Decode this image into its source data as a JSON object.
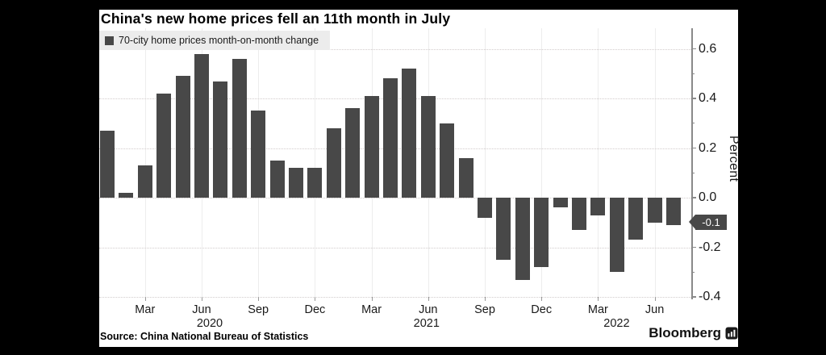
{
  "colors": {
    "background": "#000000",
    "panel": "#ffffff",
    "bar": "#484848",
    "badge_bg": "#484848",
    "badge_text": "#ffffff",
    "legend_bg": "#ececec",
    "axis": "#8a8a8a",
    "text": "#1a1a1a"
  },
  "header": {
    "title": "China's new home prices fell an 11th month in July"
  },
  "legend": {
    "label": "70-city home prices month-on-month change"
  },
  "annotation": {
    "last_value_label": "-0.1"
  },
  "footer": {
    "source": "Source: China National Bureau of Statistics",
    "brand": "Bloomberg"
  },
  "chart_data": {
    "type": "bar",
    "title": "China's new home prices fell an 11th month in July",
    "series_name": "70-city home prices month-on-month change",
    "xlabel": "",
    "ylabel": "Percent",
    "ylim": [
      -0.45,
      0.68
    ],
    "grid": true,
    "bar_color": "#484848",
    "categories": [
      "Jan 2020",
      "Feb 2020",
      "Mar 2020",
      "Apr 2020",
      "May 2020",
      "Jun 2020",
      "Jul 2020",
      "Aug 2020",
      "Sep 2020",
      "Oct 2020",
      "Nov 2020",
      "Dec 2020",
      "Jan 2021",
      "Feb 2021",
      "Mar 2021",
      "Apr 2021",
      "May 2021",
      "Jun 2021",
      "Jul 2021",
      "Aug 2021",
      "Sep 2021",
      "Oct 2021",
      "Nov 2021",
      "Dec 2021",
      "Jan 2022",
      "Feb 2022",
      "Mar 2022",
      "Apr 2022",
      "May 2022",
      "Jun 2022",
      "Jul 2022"
    ],
    "values": [
      0.27,
      0.02,
      0.13,
      0.42,
      0.49,
      0.58,
      0.47,
      0.56,
      0.35,
      0.15,
      0.12,
      0.12,
      0.28,
      0.36,
      0.41,
      0.48,
      0.52,
      0.41,
      0.3,
      0.16,
      -0.08,
      -0.25,
      -0.33,
      -0.28,
      -0.04,
      -0.13,
      -0.07,
      -0.3,
      -0.17,
      -0.1,
      -0.11
    ],
    "y_major_ticks": [
      {
        "value": 0.6,
        "label": "0.6"
      },
      {
        "value": 0.4,
        "label": "0.4"
      },
      {
        "value": 0.2,
        "label": "0.2"
      },
      {
        "value": 0.0,
        "label": "0.0"
      },
      {
        "value": -0.2,
        "label": "-0.2"
      },
      {
        "value": -0.4,
        "label": "-0.4"
      }
    ],
    "y_minor_ticks": [
      0.5,
      0.3,
      0.1,
      -0.1,
      -0.3
    ],
    "x_ticks": [
      {
        "label": "Mar",
        "month_index": 2
      },
      {
        "label": "Jun",
        "month_index": 5,
        "year": "2020"
      },
      {
        "label": "Sep",
        "month_index": 8
      },
      {
        "label": "Dec",
        "month_index": 11
      },
      {
        "label": "Mar",
        "month_index": 14
      },
      {
        "label": "Jun",
        "month_index": 17,
        "year": "2021"
      },
      {
        "label": "Sep",
        "month_index": 20
      },
      {
        "label": "Dec",
        "month_index": 23
      },
      {
        "label": "Mar",
        "month_index": 26,
        "year": "2022"
      },
      {
        "label": "Jun",
        "month_index": 29
      }
    ],
    "legend_position": "top-left",
    "latest_value_marker": {
      "value": -0.11,
      "label": "-0.1"
    }
  }
}
